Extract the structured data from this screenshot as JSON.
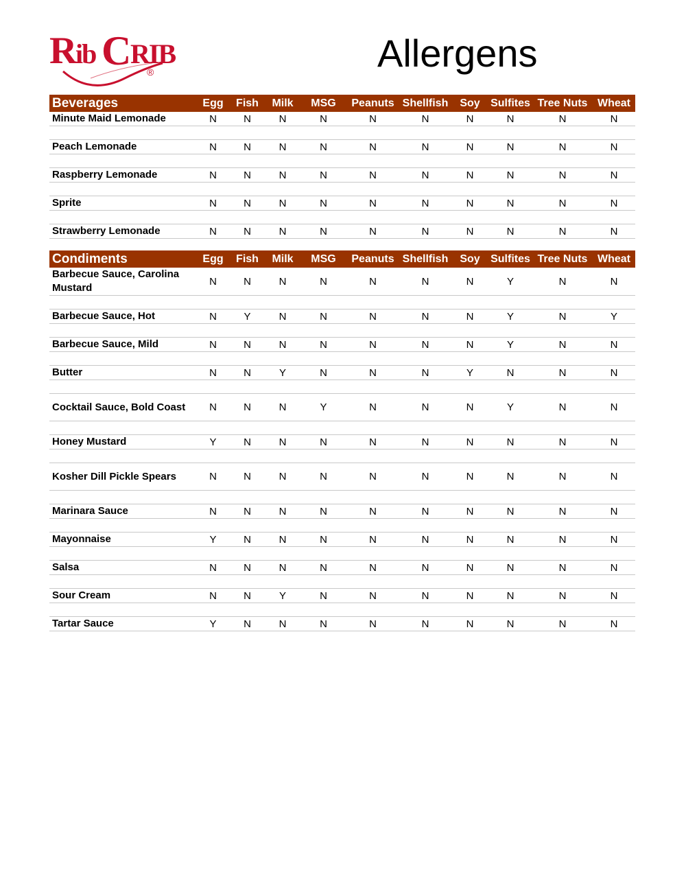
{
  "logo": {
    "text": "RibCrib",
    "mark": "®",
    "color": "#c8102e"
  },
  "title": "Allergens",
  "columns": [
    "Egg",
    "Fish",
    "Milk",
    "MSG",
    "Peanuts",
    "Shellfish",
    "Soy",
    "Sulfites",
    "Tree Nuts",
    "Wheat"
  ],
  "header_color": "#993300",
  "sections": [
    {
      "name": "Beverages",
      "items": [
        {
          "name": "Minute Maid Lemonade",
          "values": [
            "N",
            "N",
            "N",
            "N",
            "N",
            "N",
            "N",
            "N",
            "N",
            "N"
          ]
        },
        {
          "name": "Peach Lemonade",
          "values": [
            "N",
            "N",
            "N",
            "N",
            "N",
            "N",
            "N",
            "N",
            "N",
            "N"
          ]
        },
        {
          "name": "Raspberry Lemonade",
          "values": [
            "N",
            "N",
            "N",
            "N",
            "N",
            "N",
            "N",
            "N",
            "N",
            "N"
          ]
        },
        {
          "name": "Sprite",
          "values": [
            "N",
            "N",
            "N",
            "N",
            "N",
            "N",
            "N",
            "N",
            "N",
            "N"
          ]
        },
        {
          "name": "Strawberry Lemonade",
          "values": [
            "N",
            "N",
            "N",
            "N",
            "N",
            "N",
            "N",
            "N",
            "N",
            "N"
          ]
        }
      ]
    },
    {
      "name": "Condiments",
      "items": [
        {
          "name": "Barbecue Sauce, Carolina Mustard",
          "values": [
            "N",
            "N",
            "N",
            "N",
            "N",
            "N",
            "N",
            "Y",
            "N",
            "N"
          ]
        },
        {
          "name": "Barbecue Sauce, Hot",
          "values": [
            "N",
            "Y",
            "N",
            "N",
            "N",
            "N",
            "N",
            "Y",
            "N",
            "Y"
          ]
        },
        {
          "name": "Barbecue Sauce, Mild",
          "values": [
            "N",
            "N",
            "N",
            "N",
            "N",
            "N",
            "N",
            "Y",
            "N",
            "N"
          ]
        },
        {
          "name": "Butter",
          "values": [
            "N",
            "N",
            "Y",
            "N",
            "N",
            "N",
            "Y",
            "N",
            "N",
            "N"
          ]
        },
        {
          "name": "Cocktail Sauce, Bold Coast",
          "values": [
            "N",
            "N",
            "N",
            "Y",
            "N",
            "N",
            "N",
            "Y",
            "N",
            "N"
          ]
        },
        {
          "name": "Honey Mustard",
          "values": [
            "Y",
            "N",
            "N",
            "N",
            "N",
            "N",
            "N",
            "N",
            "N",
            "N"
          ]
        },
        {
          "name": "Kosher Dill Pickle Spears",
          "values": [
            "N",
            "N",
            "N",
            "N",
            "N",
            "N",
            "N",
            "N",
            "N",
            "N"
          ]
        },
        {
          "name": "Marinara Sauce",
          "values": [
            "N",
            "N",
            "N",
            "N",
            "N",
            "N",
            "N",
            "N",
            "N",
            "N"
          ]
        },
        {
          "name": "Mayonnaise",
          "values": [
            "Y",
            "N",
            "N",
            "N",
            "N",
            "N",
            "N",
            "N",
            "N",
            "N"
          ]
        },
        {
          "name": "Salsa",
          "values": [
            "N",
            "N",
            "N",
            "N",
            "N",
            "N",
            "N",
            "N",
            "N",
            "N"
          ]
        },
        {
          "name": "Sour Cream",
          "values": [
            "N",
            "N",
            "Y",
            "N",
            "N",
            "N",
            "N",
            "N",
            "N",
            "N"
          ]
        },
        {
          "name": "Tartar Sauce",
          "values": [
            "Y",
            "N",
            "N",
            "N",
            "N",
            "N",
            "N",
            "N",
            "N",
            "N"
          ]
        }
      ]
    }
  ]
}
